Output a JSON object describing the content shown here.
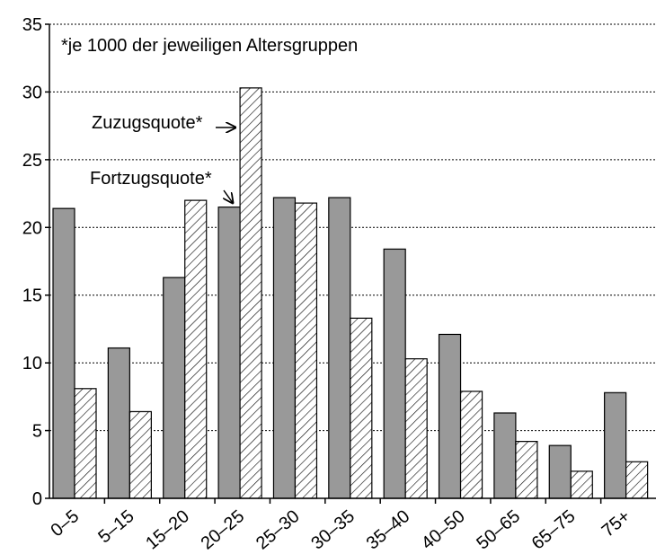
{
  "chart_data": {
    "type": "bar",
    "note": "*je 1000 der jeweiligen Altersgruppen",
    "categories": [
      "0–5",
      "5–15",
      "15–20",
      "20–25",
      "25–30",
      "30–35",
      "35–40",
      "40–50",
      "50–65",
      "65–75",
      "75+"
    ],
    "series": [
      {
        "name": "Fortzugsquote*",
        "color": "#999999",
        "values": [
          21.4,
          11.1,
          16.3,
          21.5,
          22.2,
          22.2,
          18.4,
          12.1,
          6.3,
          3.9,
          7.8
        ]
      },
      {
        "name": "Zuzugsquote*",
        "color": "#ffffff",
        "pattern": "hatch",
        "values": [
          8.1,
          6.4,
          22.0,
          30.3,
          21.8,
          13.3,
          10.3,
          7.9,
          4.2,
          2.0,
          2.7
        ]
      }
    ],
    "ylim": [
      0,
      35
    ],
    "yticks": [
      0,
      5,
      10,
      15,
      20,
      25,
      30,
      35
    ],
    "grid": true
  }
}
